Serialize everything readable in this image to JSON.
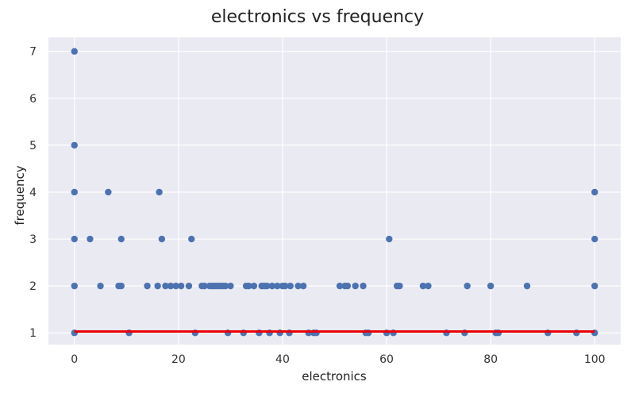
{
  "chart_data": {
    "type": "scatter",
    "title": "electronics vs frequency",
    "xlabel": "electronics",
    "ylabel": "frequency",
    "xlim": [
      -5,
      105
    ],
    "ylim": [
      0.75,
      7.3
    ],
    "xticks": [
      0,
      20,
      40,
      60,
      80,
      100
    ],
    "yticks": [
      1,
      2,
      3,
      4,
      5,
      6,
      7
    ],
    "grid": true,
    "legend": "none",
    "colors": {
      "background": "#eaeaf2",
      "grid": "#ffffff",
      "points": "#4c72b0",
      "fit_line": "#e8000b"
    },
    "points": [
      [
        0,
        1
      ],
      [
        0,
        2
      ],
      [
        0,
        3
      ],
      [
        0,
        4
      ],
      [
        0,
        5
      ],
      [
        0,
        7
      ],
      [
        3,
        3
      ],
      [
        5,
        2
      ],
      [
        6.5,
        4
      ],
      [
        8.5,
        2
      ],
      [
        9,
        2
      ],
      [
        9,
        3
      ],
      [
        10.5,
        1
      ],
      [
        14,
        2
      ],
      [
        16,
        2
      ],
      [
        16.3,
        4
      ],
      [
        16.8,
        3
      ],
      [
        17.5,
        2
      ],
      [
        18.5,
        2
      ],
      [
        19.5,
        2
      ],
      [
        20.5,
        2
      ],
      [
        22,
        2
      ],
      [
        22.5,
        3
      ],
      [
        23.2,
        1
      ],
      [
        24.5,
        2
      ],
      [
        25,
        2
      ],
      [
        26,
        2
      ],
      [
        26.5,
        2
      ],
      [
        27,
        2
      ],
      [
        27.5,
        2
      ],
      [
        28,
        2
      ],
      [
        28.5,
        2
      ],
      [
        29,
        2
      ],
      [
        29.5,
        1
      ],
      [
        30,
        2
      ],
      [
        32.5,
        1
      ],
      [
        33,
        2
      ],
      [
        33.5,
        2
      ],
      [
        34.5,
        2
      ],
      [
        35.5,
        1
      ],
      [
        36,
        2
      ],
      [
        36.5,
        2
      ],
      [
        37,
        2
      ],
      [
        37.5,
        1
      ],
      [
        38,
        2
      ],
      [
        39,
        2
      ],
      [
        39.5,
        1
      ],
      [
        40,
        2
      ],
      [
        40.5,
        2
      ],
      [
        41.3,
        1
      ],
      [
        41.5,
        2
      ],
      [
        43,
        2
      ],
      [
        44,
        2
      ],
      [
        45,
        1
      ],
      [
        46,
        1
      ],
      [
        46.5,
        1
      ],
      [
        51,
        2
      ],
      [
        52,
        2
      ],
      [
        52.5,
        2
      ],
      [
        54,
        2
      ],
      [
        55.5,
        2
      ],
      [
        56,
        1
      ],
      [
        56.5,
        1
      ],
      [
        60,
        1
      ],
      [
        60.5,
        3
      ],
      [
        61.3,
        1
      ],
      [
        62,
        2
      ],
      [
        62.5,
        2
      ],
      [
        67,
        2
      ],
      [
        68,
        2
      ],
      [
        71.5,
        1
      ],
      [
        75,
        1
      ],
      [
        75.5,
        2
      ],
      [
        80,
        2
      ],
      [
        81,
        1
      ],
      [
        81.5,
        1
      ],
      [
        87,
        2
      ],
      [
        91,
        1
      ],
      [
        96.5,
        1
      ],
      [
        100,
        1
      ],
      [
        100,
        2
      ],
      [
        100,
        3
      ],
      [
        100,
        4
      ]
    ],
    "fit_line": {
      "x": [
        0,
        100
      ],
      "y": [
        1.03,
        1.03
      ]
    }
  }
}
